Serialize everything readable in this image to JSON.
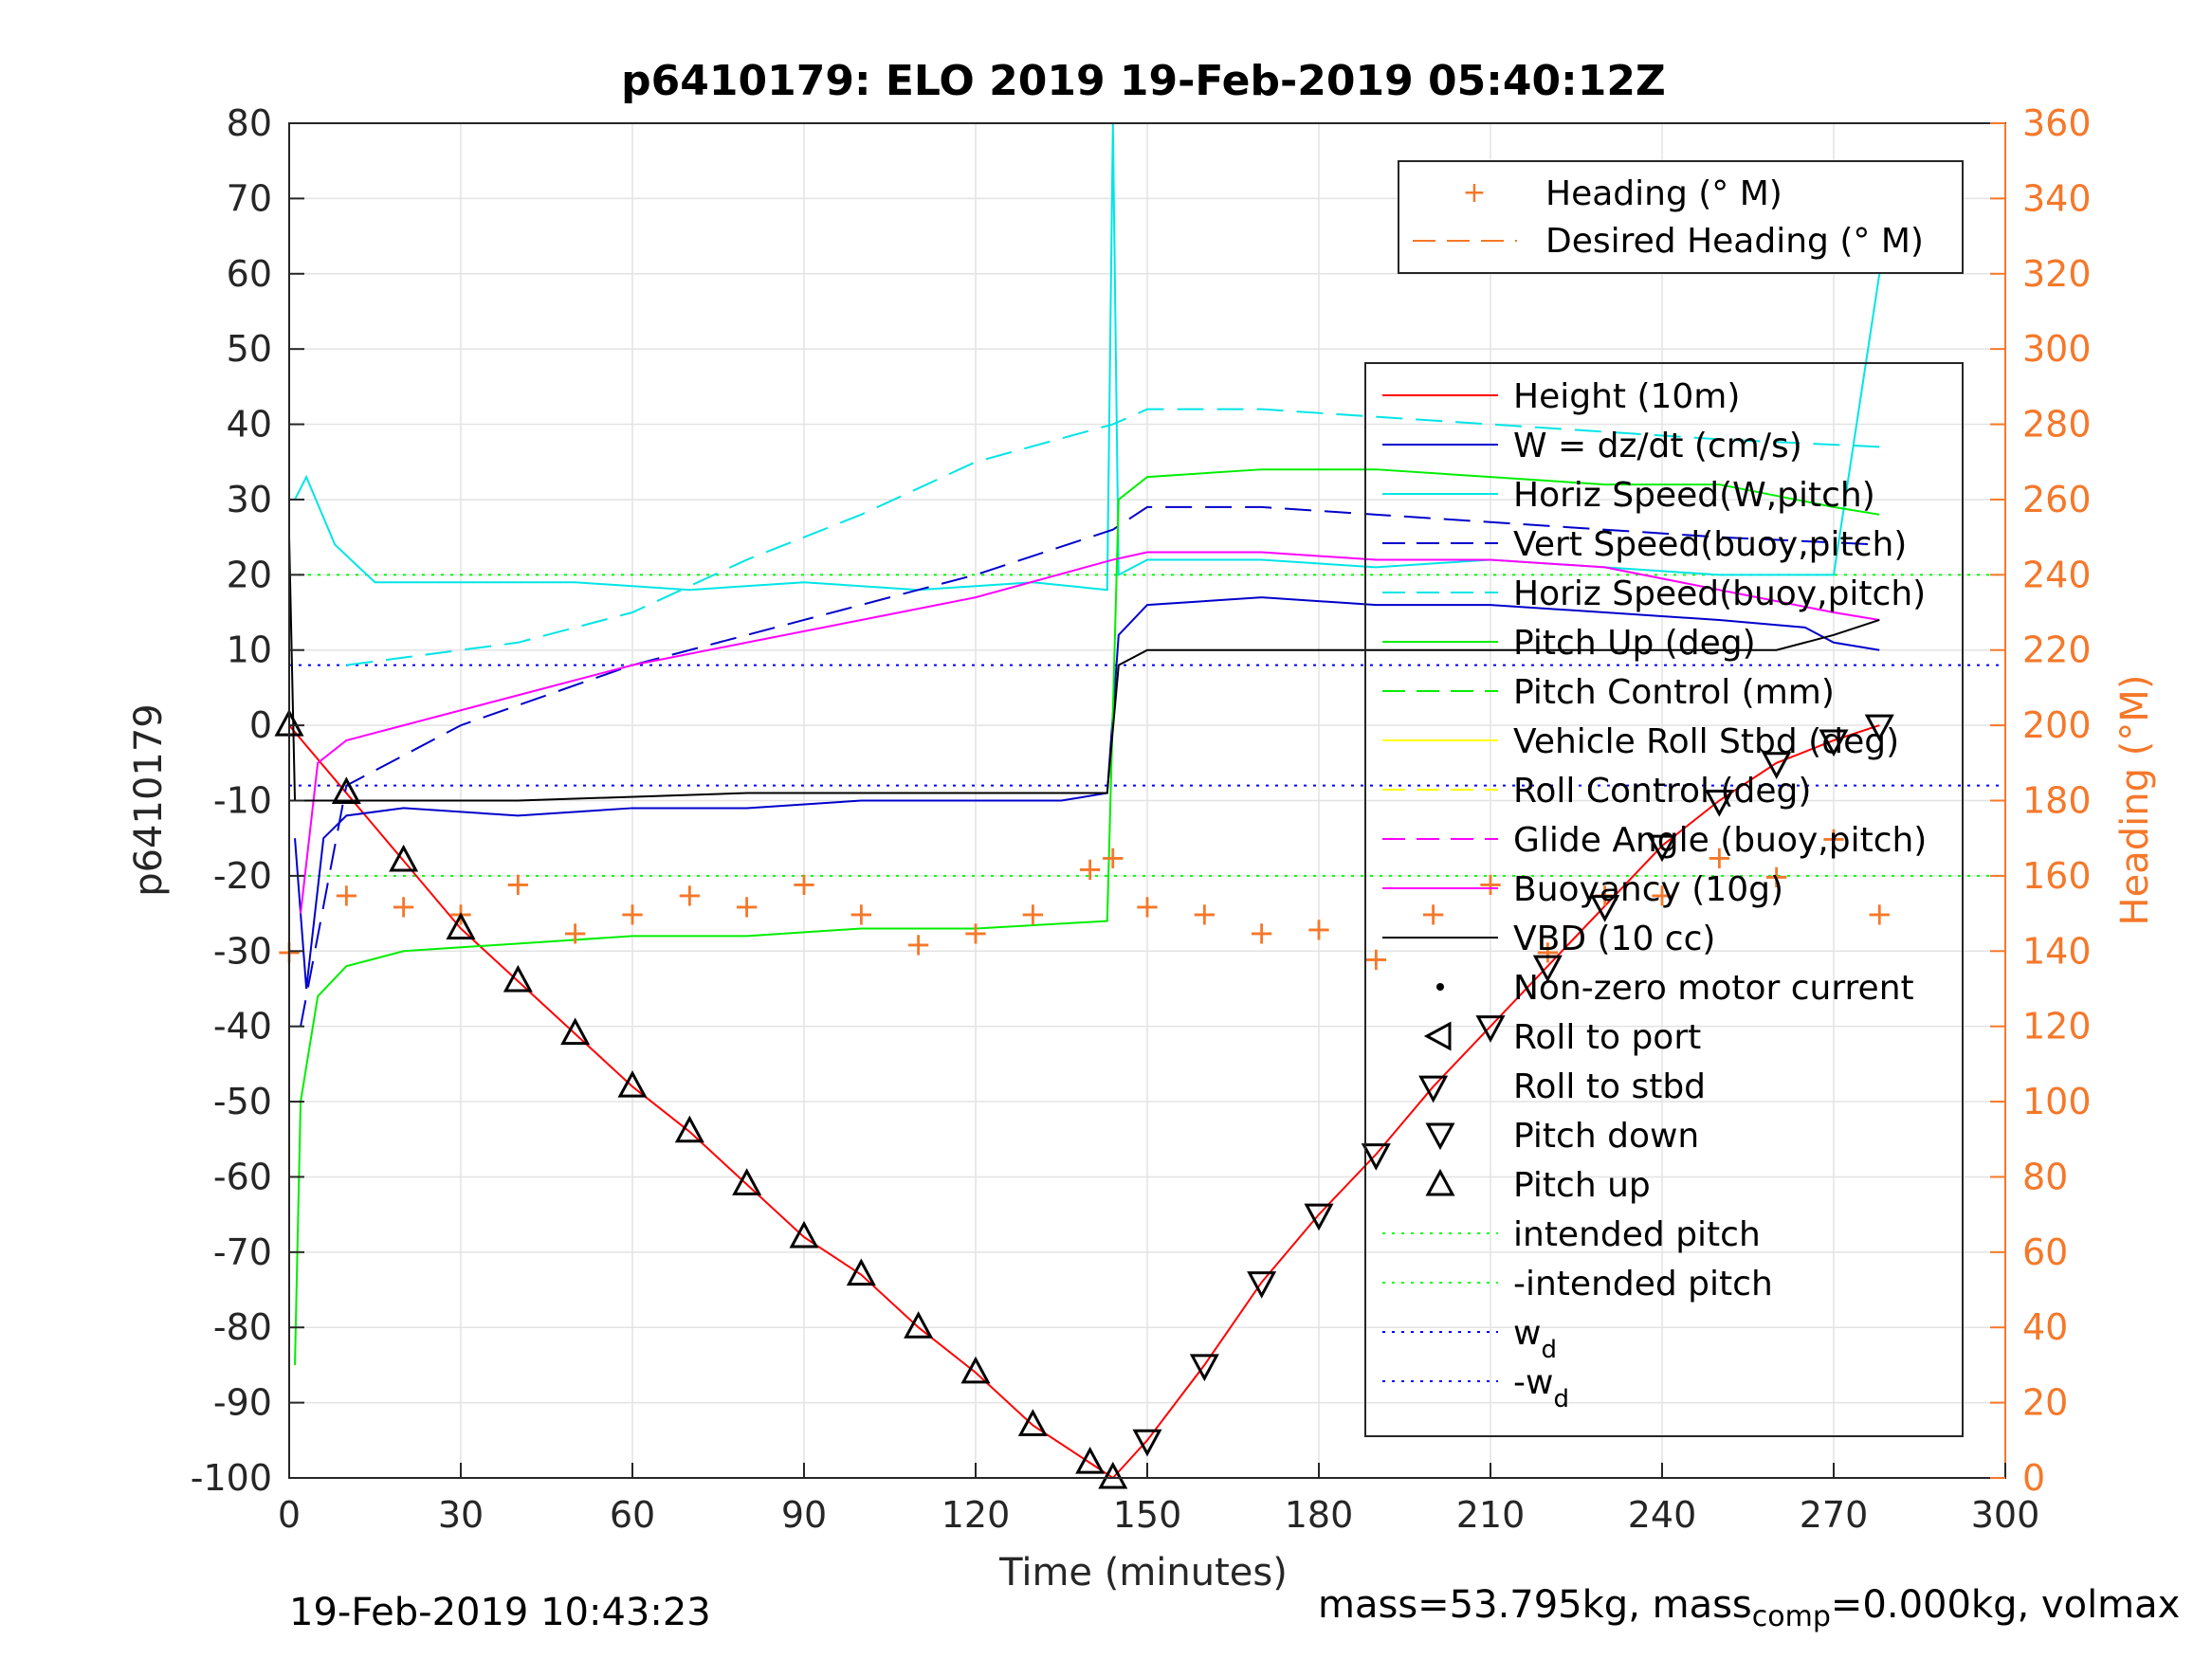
{
  "chart_data": {
    "type": "line",
    "title": "p6410179: ELO 2019 19-Feb-2019 05:40:12Z",
    "xlabel": "Time (minutes)",
    "ylabel": "p6410179",
    "ylabel_right": "Heading (°M)",
    "xlim": [
      0,
      300
    ],
    "ylim": [
      -100,
      80
    ],
    "ylim_right": [
      0,
      360
    ],
    "xticks": [
      "0",
      "30",
      "60",
      "90",
      "120",
      "150",
      "180",
      "210",
      "240",
      "270",
      "300"
    ],
    "yticks": [
      "-100",
      "-90",
      "-80",
      "-70",
      "-60",
      "-50",
      "-40",
      "-30",
      "-20",
      "-10",
      "0",
      "10",
      "20",
      "30",
      "40",
      "50",
      "60",
      "70",
      "80"
    ],
    "yticks_right": [
      "0",
      "20",
      "40",
      "60",
      "80",
      "100",
      "120",
      "140",
      "160",
      "180",
      "200",
      "220",
      "240",
      "260",
      "280",
      "300",
      "320",
      "340",
      "360"
    ],
    "grid": true,
    "colors": {
      "height": "#ff0000",
      "w": "#0000cc",
      "horiz_speed": "#00e5e5",
      "vert_speed": "#0000cc",
      "pitch": "#00ee00",
      "roll": "#ffff00",
      "glide": "#ff00ff",
      "vbd": "#000000",
      "heading": "#f5782a",
      "intended_pitch": "#00ff00",
      "wd": "#0000ff"
    },
    "legend_top": {
      "placement": "top-right",
      "entries": [
        "Heading (° M)",
        "Desired Heading (° M)"
      ]
    },
    "legend_main": {
      "placement": "right",
      "entries": [
        "Height (10m)",
        "W = dz/dt (cm/s)",
        "Horiz Speed(W,pitch)",
        "Vert Speed(buoy,pitch)",
        "Horiz Speed(buoy,pitch)",
        "Pitch Up (deg)",
        "Pitch Control (mm)",
        "Vehicle Roll Stbd (deg)",
        "Roll Control (deg)",
        "Glide Angle (buoy,pitch)",
        "Buoyancy (10g)",
        "VBD (10 cc)",
        "Non-zero motor current",
        "Roll to port",
        "Roll to stbd",
        "Pitch down",
        "Pitch up",
        "intended pitch",
        "-intended pitch",
        "w",
        "-w"
      ],
      "subscript": "d"
    },
    "series": [
      {
        "name": "Height (10m)",
        "x": [
          0,
          10,
          20,
          30,
          40,
          50,
          60,
          70,
          80,
          90,
          100,
          110,
          120,
          130,
          140,
          144,
          150,
          160,
          170,
          180,
          190,
          200,
          210,
          220,
          230,
          240,
          250,
          260,
          270,
          278
        ],
        "y": [
          0,
          -9,
          -18,
          -27,
          -34,
          -41,
          -48,
          -54,
          -61,
          -68,
          -73,
          -80,
          -86,
          -93,
          -98,
          -100,
          -95,
          -85,
          -74,
          -65,
          -57,
          -48,
          -40,
          -32,
          -24,
          -16,
          -10,
          -5,
          -2,
          0
        ]
      },
      {
        "name": "W = dz/dt (cm/s)",
        "x": [
          1,
          3,
          6,
          10,
          20,
          40,
          60,
          80,
          100,
          120,
          135,
          143,
          145,
          150,
          170,
          190,
          210,
          230,
          250,
          265,
          270,
          278
        ],
        "y": [
          -15,
          -35,
          -15,
          -12,
          -11,
          -12,
          -11,
          -11,
          -10,
          -10,
          -10,
          -9,
          12,
          16,
          17,
          16,
          16,
          15,
          14,
          13,
          11,
          10
        ]
      },
      {
        "name": "Horiz Speed(W,pitch)",
        "x": [
          1,
          3,
          8,
          15,
          30,
          50,
          70,
          90,
          110,
          130,
          143,
          144,
          145,
          150,
          170,
          190,
          210,
          230,
          250,
          270,
          278
        ],
        "y": [
          30,
          33,
          24,
          19,
          19,
          19,
          18,
          19,
          18,
          19,
          18,
          80,
          20,
          22,
          22,
          21,
          22,
          21,
          20,
          20,
          60
        ]
      },
      {
        "name": "Vert Speed(buoy,pitch)",
        "x": [
          2,
          10,
          30,
          60,
          90,
          120,
          144,
          150,
          170,
          190,
          210,
          230,
          250,
          278
        ],
        "y": [
          -40,
          -8,
          0,
          8,
          14,
          20,
          26,
          29,
          29,
          28,
          27,
          26,
          25,
          24
        ]
      },
      {
        "name": "Horiz Speed(buoy,pitch)",
        "x": [
          10,
          20,
          40,
          60,
          80,
          100,
          120,
          144,
          150,
          170,
          190,
          210,
          230,
          250,
          278
        ],
        "y": [
          8,
          9,
          11,
          15,
          22,
          28,
          35,
          40,
          42,
          42,
          41,
          40,
          39,
          38,
          37
        ]
      },
      {
        "name": "Pitch Up (deg)",
        "x": [
          1,
          2,
          5,
          10,
          20,
          40,
          60,
          80,
          100,
          120,
          143,
          145,
          150,
          170,
          190,
          210,
          230,
          250,
          270,
          278
        ],
        "y": [
          -85,
          -50,
          -36,
          -32,
          -30,
          -29,
          -28,
          -28,
          -27,
          -27,
          -26,
          30,
          33,
          34,
          34,
          33,
          32,
          32,
          29,
          28
        ]
      },
      {
        "name": "Glide Angle (buoy,pitch)",
        "x": [
          2,
          5,
          10,
          20,
          40,
          60,
          80,
          100,
          120,
          144,
          150,
          170,
          190,
          210,
          230,
          250,
          270,
          278
        ],
        "y": [
          -25,
          -5,
          -2,
          0,
          4,
          8,
          11,
          14,
          17,
          22,
          23,
          23,
          22,
          22,
          21,
          18,
          15,
          14
        ]
      },
      {
        "name": "VBD (10 cc)",
        "x": [
          0,
          1,
          3,
          10,
          40,
          80,
          120,
          143,
          145,
          150,
          180,
          220,
          260,
          270,
          278
        ],
        "y": [
          25,
          -10,
          -10,
          -10,
          -10,
          -9,
          -9,
          -9,
          8,
          10,
          10,
          10,
          10,
          12,
          14
        ]
      },
      {
        "name": "Heading (° M)",
        "x": [
          0,
          10,
          20,
          30,
          40,
          50,
          60,
          70,
          80,
          90,
          100,
          110,
          120,
          130,
          140,
          144,
          150,
          160,
          170,
          180,
          190,
          200,
          210,
          220,
          230,
          240,
          250,
          260,
          270,
          278
        ],
        "y": [
          140,
          155,
          152,
          150,
          158,
          145,
          150,
          155,
          152,
          158,
          150,
          142,
          145,
          150,
          162,
          165,
          152,
          150,
          145,
          146,
          138,
          150,
          158,
          140,
          155,
          155,
          165,
          160,
          170,
          150
        ]
      }
    ],
    "intended_pitch": 20,
    "wd": 8
  },
  "footer": {
    "timestamp": "19-Feb-2019 10:43:23",
    "mass_text_a": "mass=53.795kg, mass",
    "mass_sub": "comp",
    "mass_text_b": "=0.000kg, volmax"
  }
}
